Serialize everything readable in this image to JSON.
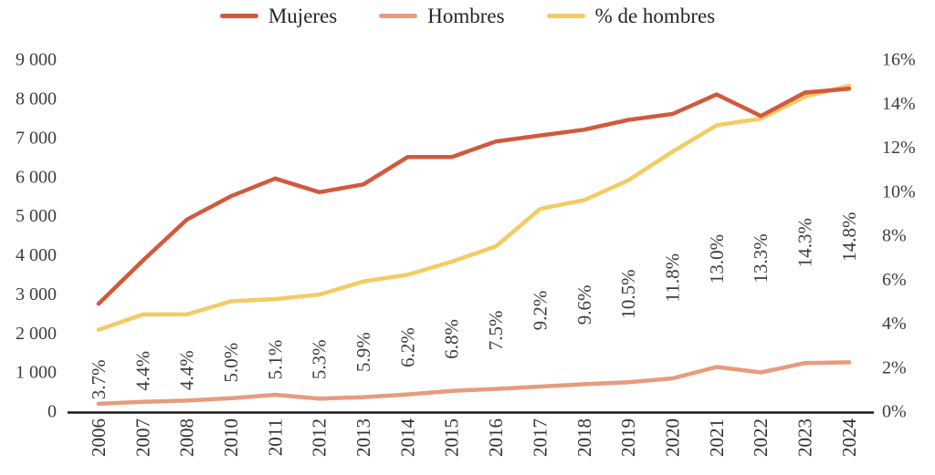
{
  "legend": {
    "items": [
      {
        "label": "Mujeres",
        "color": "#D15A3C"
      },
      {
        "label": "Hombres",
        "color": "#E89B7D"
      },
      {
        "label": "% de hombres",
        "color": "#F4CB64"
      }
    ]
  },
  "chart_data": {
    "type": "line",
    "title": "",
    "categories": [
      "2006",
      "2007",
      "2008",
      "2010",
      "2011",
      "2012",
      "2013",
      "2014",
      "2015",
      "2016",
      "2017",
      "2018",
      "2019",
      "2020",
      "2021",
      "2022",
      "2023",
      "2024"
    ],
    "series": [
      {
        "name": "Mujeres",
        "axis": "left",
        "color": "#D15A3C",
        "values": [
          2750,
          3850,
          4900,
          5500,
          5950,
          5600,
          5800,
          6500,
          6500,
          6900,
          7050,
          7200,
          7450,
          7600,
          8100,
          7550,
          8150,
          8250
        ]
      },
      {
        "name": "Hombres",
        "axis": "left",
        "color": "#E89B7D",
        "values": [
          190,
          240,
          270,
          330,
          420,
          320,
          360,
          430,
          520,
          570,
          630,
          690,
          740,
          840,
          1130,
          990,
          1230,
          1250
        ]
      },
      {
        "name": "% de hombres",
        "axis": "right",
        "color": "#F4CB64",
        "values": [
          3.7,
          4.4,
          4.4,
          5.0,
          5.1,
          5.3,
          5.9,
          6.2,
          6.8,
          7.5,
          9.2,
          9.6,
          10.5,
          11.8,
          13.0,
          13.3,
          14.3,
          14.8
        ],
        "data_labels": [
          "3.7%",
          "4.4%",
          "4.4%",
          "5.0%",
          "5.1%",
          "5.3%",
          "5.9%",
          "6.2%",
          "6.8%",
          "7.5%",
          "9.2%",
          "9.6%",
          "10.5%",
          "11.8%",
          "13.0%",
          "13.3%",
          "14.3%",
          "14.8%"
        ]
      }
    ],
    "left_axis": {
      "min": 0,
      "max": 9000,
      "tick_labels": [
        "0",
        "1 000",
        "2 000",
        "3 000",
        "4 000",
        "5 000",
        "6 000",
        "7 000",
        "8 000",
        "9 000"
      ]
    },
    "right_axis": {
      "min": 0,
      "max": 16,
      "tick_labels": [
        "0%",
        "2%",
        "4%",
        "6%",
        "8%",
        "10%",
        "12%",
        "14%",
        "16%"
      ]
    },
    "grid": false,
    "legend_position": "top",
    "text_color": "#3D3D3D",
    "axis_line_color": "#1A1A1A"
  }
}
